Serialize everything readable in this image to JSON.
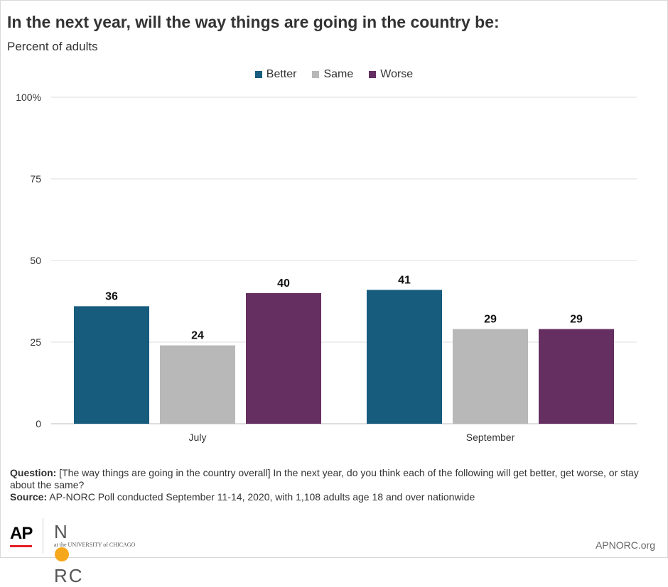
{
  "title": "In the next year, will the way things are going in the country be:",
  "subtitle": "Percent of adults",
  "colors": {
    "Better": "#175b7d",
    "Same": "#b8b8b8",
    "Worse": "#652f62"
  },
  "chart_data": {
    "type": "bar",
    "categories": [
      "July",
      "September"
    ],
    "series": [
      {
        "name": "Better",
        "values": [
          36,
          41
        ]
      },
      {
        "name": "Same",
        "values": [
          24,
          29
        ]
      },
      {
        "name": "Worse",
        "values": [
          40,
          29
        ]
      }
    ],
    "ylim": [
      0,
      100
    ],
    "yticks": [
      "0",
      "25",
      "50",
      "75",
      "100%"
    ],
    "ytick_values": [
      0,
      25,
      50,
      75,
      100
    ],
    "legend": "top-center",
    "grid": true
  },
  "notes": {
    "question_label": "Question:",
    "question_text": "[The way things are going in the country overall] In the next year, do you think each of the following will get better, get worse, or stay about the same?",
    "source_label": "Source:",
    "source_text": "AP-NORC Poll conducted September 11-14, 2020, with 1,108 adults age 18 and over nationwide"
  },
  "logos": {
    "ap": "AP",
    "norc_n": "N",
    "norc_rc": "RC",
    "norc_sub": "at the UNIVERSITY of CHICAGO"
  },
  "site": "APNORC.org"
}
